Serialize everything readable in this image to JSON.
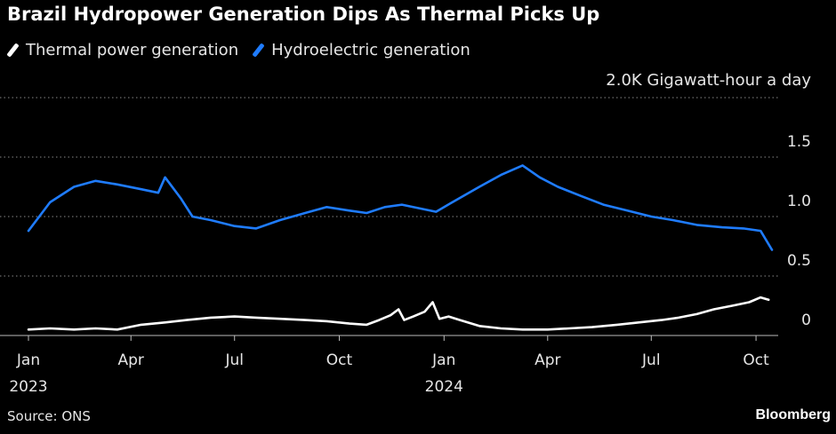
{
  "title": "Brazil Hydropower Generation Dips As Thermal Picks Up",
  "unit_label": "2.0K Gigawatt-hour a day",
  "source": "Source: ONS",
  "brand": "Bloomberg",
  "colors": {
    "thermal": "#ffffff",
    "hydro": "#1f7cff",
    "grid": "#8a8a8a",
    "axis": "#bdbdbd"
  },
  "chart_data": {
    "type": "line",
    "legend_position": "top-left",
    "grid": "dotted horizontal",
    "ylim": [
      0,
      2.0
    ],
    "y_ticks": [
      {
        "value": 0.5,
        "label": "0.5"
      },
      {
        "value": 1.0,
        "label": "1.0"
      },
      {
        "value": 1.5,
        "label": "1.5"
      }
    ],
    "y_zero_label": "0",
    "x_range": [
      "2023-01-01",
      "2024-10-15"
    ],
    "x_ticks": [
      {
        "date": "2023-01-01",
        "label": "Jan",
        "year": "2023"
      },
      {
        "date": "2023-04-01",
        "label": "Apr",
        "year": ""
      },
      {
        "date": "2023-07-01",
        "label": "Jul",
        "year": ""
      },
      {
        "date": "2023-10-01",
        "label": "Oct",
        "year": ""
      },
      {
        "date": "2024-01-01",
        "label": "Jan",
        "year": "2024"
      },
      {
        "date": "2024-04-01",
        "label": "Apr",
        "year": ""
      },
      {
        "date": "2024-07-01",
        "label": "Jul",
        "year": ""
      },
      {
        "date": "2024-10-01",
        "label": "Oct",
        "year": ""
      }
    ],
    "series": [
      {
        "name": "Thermal power generation",
        "points": [
          [
            "2023-01-01",
            0.05
          ],
          [
            "2023-01-20",
            0.06
          ],
          [
            "2023-02-10",
            0.05
          ],
          [
            "2023-03-01",
            0.06
          ],
          [
            "2023-03-20",
            0.05
          ],
          [
            "2023-04-10",
            0.09
          ],
          [
            "2023-05-01",
            0.11
          ],
          [
            "2023-05-20",
            0.13
          ],
          [
            "2023-06-10",
            0.15
          ],
          [
            "2023-07-01",
            0.16
          ],
          [
            "2023-07-20",
            0.15
          ],
          [
            "2023-08-10",
            0.14
          ],
          [
            "2023-09-01",
            0.13
          ],
          [
            "2023-09-20",
            0.12
          ],
          [
            "2023-10-10",
            0.1
          ],
          [
            "2023-10-25",
            0.09
          ],
          [
            "2023-11-05",
            0.13
          ],
          [
            "2023-11-15",
            0.17
          ],
          [
            "2023-11-22",
            0.22
          ],
          [
            "2023-11-27",
            0.13
          ],
          [
            "2023-12-05",
            0.16
          ],
          [
            "2023-12-15",
            0.2
          ],
          [
            "2023-12-22",
            0.28
          ],
          [
            "2023-12-28",
            0.14
          ],
          [
            "2024-01-05",
            0.16
          ],
          [
            "2024-01-15",
            0.13
          ],
          [
            "2024-02-01",
            0.08
          ],
          [
            "2024-02-20",
            0.06
          ],
          [
            "2024-03-10",
            0.05
          ],
          [
            "2024-04-01",
            0.05
          ],
          [
            "2024-04-20",
            0.06
          ],
          [
            "2024-05-10",
            0.07
          ],
          [
            "2024-06-01",
            0.09
          ],
          [
            "2024-06-20",
            0.11
          ],
          [
            "2024-07-10",
            0.13
          ],
          [
            "2024-07-25",
            0.15
          ],
          [
            "2024-08-10",
            0.18
          ],
          [
            "2024-08-25",
            0.22
          ],
          [
            "2024-09-10",
            0.25
          ],
          [
            "2024-09-25",
            0.28
          ],
          [
            "2024-10-05",
            0.32
          ],
          [
            "2024-10-12",
            0.3
          ]
        ]
      },
      {
        "name": "Hydroelectric generation",
        "points": [
          [
            "2023-01-01",
            0.88
          ],
          [
            "2023-01-20",
            1.12
          ],
          [
            "2023-02-10",
            1.25
          ],
          [
            "2023-03-01",
            1.3
          ],
          [
            "2023-03-20",
            1.27
          ],
          [
            "2023-04-10",
            1.23
          ],
          [
            "2023-04-25",
            1.2
          ],
          [
            "2023-05-01",
            1.33
          ],
          [
            "2023-05-15",
            1.15
          ],
          [
            "2023-05-25",
            1.0
          ],
          [
            "2023-06-10",
            0.97
          ],
          [
            "2023-07-01",
            0.92
          ],
          [
            "2023-07-20",
            0.9
          ],
          [
            "2023-08-10",
            0.97
          ],
          [
            "2023-09-01",
            1.03
          ],
          [
            "2023-09-20",
            1.08
          ],
          [
            "2023-10-10",
            1.05
          ],
          [
            "2023-10-25",
            1.03
          ],
          [
            "2023-11-10",
            1.08
          ],
          [
            "2023-11-25",
            1.1
          ],
          [
            "2023-12-10",
            1.07
          ],
          [
            "2023-12-25",
            1.04
          ],
          [
            "2024-01-10",
            1.13
          ],
          [
            "2024-02-01",
            1.25
          ],
          [
            "2024-02-20",
            1.35
          ],
          [
            "2024-03-10",
            1.43
          ],
          [
            "2024-03-25",
            1.33
          ],
          [
            "2024-04-10",
            1.25
          ],
          [
            "2024-05-01",
            1.17
          ],
          [
            "2024-05-20",
            1.1
          ],
          [
            "2024-06-10",
            1.05
          ],
          [
            "2024-07-01",
            1.0
          ],
          [
            "2024-07-20",
            0.97
          ],
          [
            "2024-08-10",
            0.93
          ],
          [
            "2024-09-01",
            0.91
          ],
          [
            "2024-09-20",
            0.9
          ],
          [
            "2024-10-05",
            0.88
          ],
          [
            "2024-10-15",
            0.72
          ]
        ]
      }
    ]
  }
}
